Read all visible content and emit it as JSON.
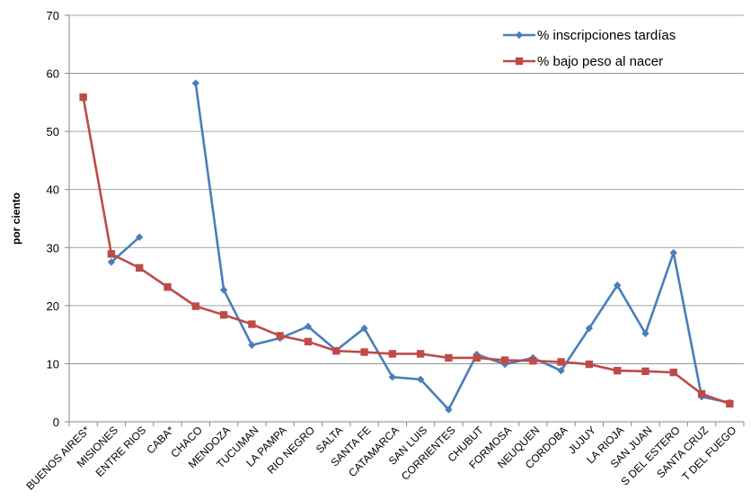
{
  "chart_data": {
    "type": "line",
    "title": "",
    "xlabel": "",
    "ylabel": "por ciento",
    "ylim": [
      0,
      70
    ],
    "yticks": [
      0,
      10,
      20,
      30,
      40,
      50,
      60,
      70
    ],
    "grid": "horizontal",
    "legend_position": "top-right",
    "categories": [
      "BUENOS AIRES*",
      "MISIONES",
      "ENTRE RIOS",
      "CABA*",
      "CHACO",
      "MENDOZA",
      "TUCUMAN",
      "LA PAMPA",
      "RIO NEGRO",
      "SALTA",
      "SANTA FE",
      "CATAMARCA",
      "SAN LUIS",
      "CORRIENTES",
      "CHUBUT",
      "FORMOSA",
      "NEUQUEN",
      "CORDOBA",
      "JUJUY",
      "LA RIOJA",
      "SAN JUAN",
      "S DEL ESTERO",
      "SANTA CRUZ",
      "T DEL FUEGO"
    ],
    "series": [
      {
        "name": "% inscripciones tardías",
        "color": "#4a7ebb",
        "marker": "diamond",
        "values": [
          null,
          27.5,
          31.8,
          null,
          58.3,
          22.7,
          13.2,
          14.4,
          16.4,
          12.3,
          16.1,
          7.7,
          7.3,
          2.1,
          11.6,
          9.9,
          11.0,
          8.8,
          16.1,
          23.5,
          15.2,
          29.1,
          4.3,
          3.3
        ]
      },
      {
        "name": "% bajo peso al nacer",
        "color": "#be4b48",
        "marker": "square",
        "values": [
          55.9,
          28.9,
          26.5,
          23.2,
          19.9,
          18.4,
          16.8,
          14.8,
          13.8,
          12.2,
          12.0,
          11.7,
          11.7,
          11.0,
          11.0,
          10.6,
          10.5,
          10.3,
          9.9,
          8.8,
          8.7,
          8.5,
          4.8,
          3.1
        ]
      }
    ]
  }
}
